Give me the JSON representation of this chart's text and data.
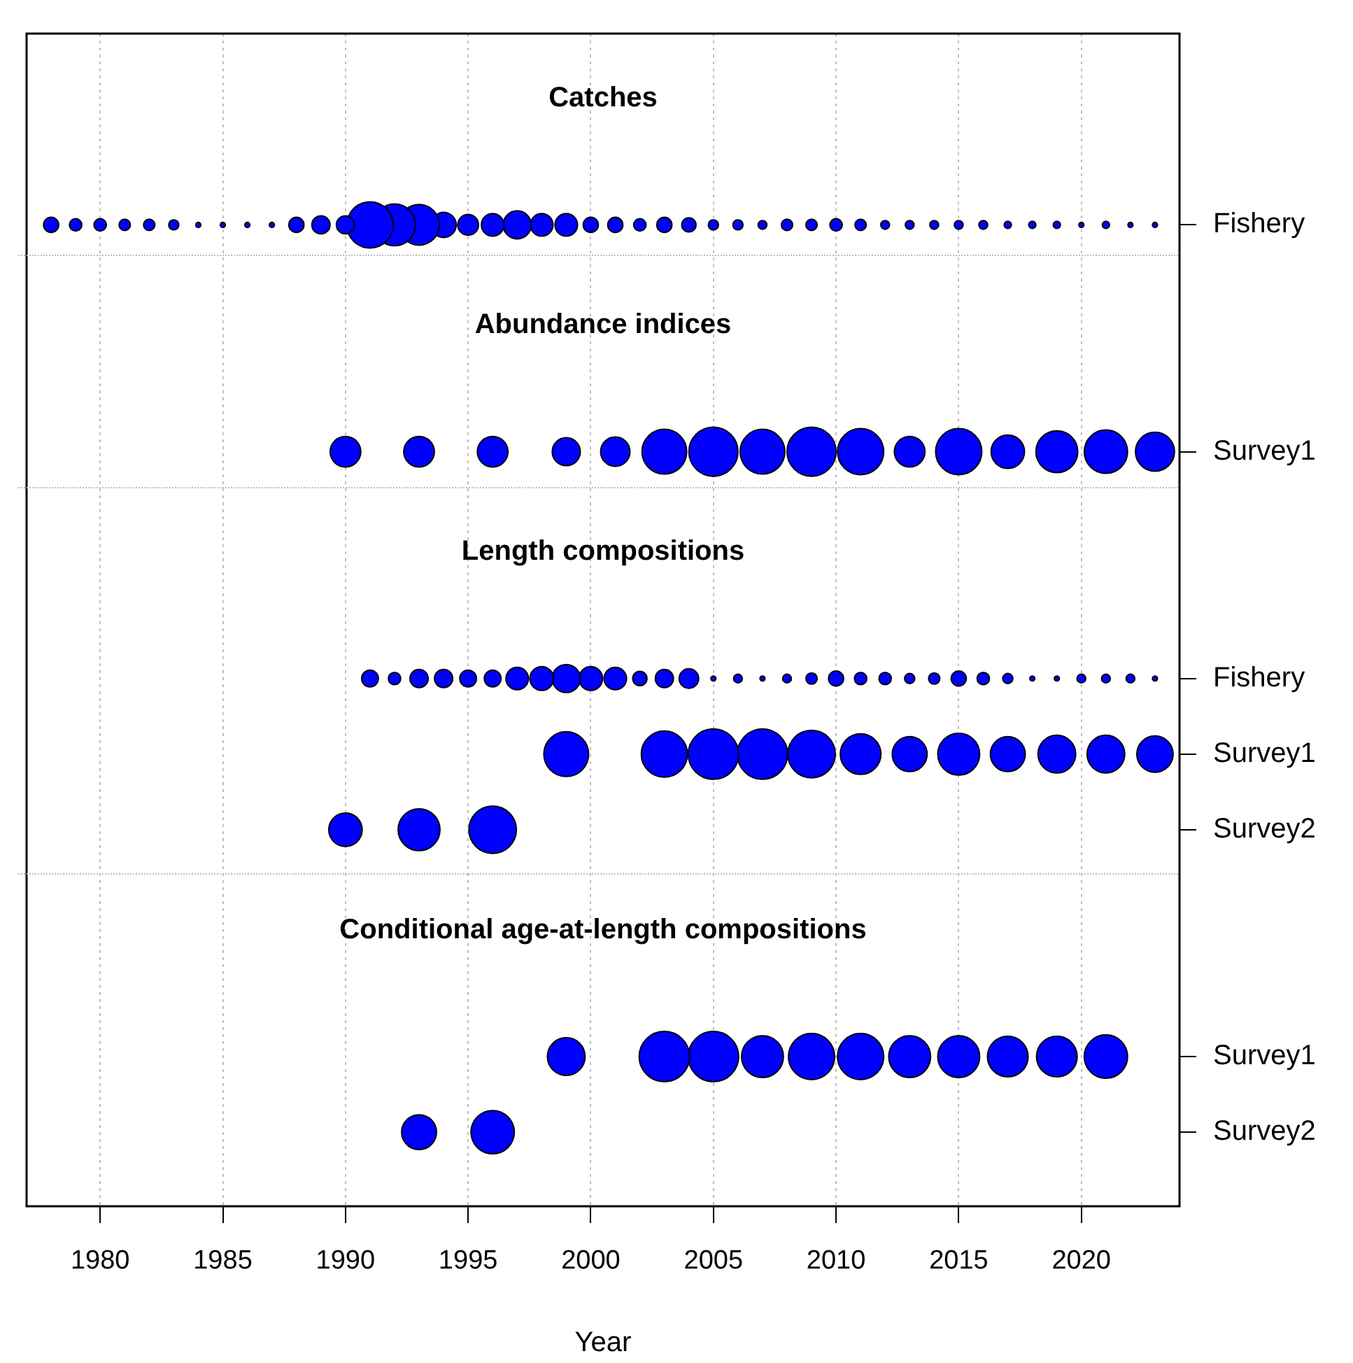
{
  "chart_data": {
    "type": "bubble",
    "orientation": "horizontal",
    "xlabel": "Year",
    "xlim": [
      1977,
      2024
    ],
    "xticks": [
      1980,
      1985,
      1990,
      1995,
      2000,
      2005,
      2010,
      2015,
      2020
    ],
    "grid": "x",
    "legend": false,
    "categories": [
      "Fishery",
      null,
      null,
      "Survey1",
      null,
      null,
      "Fishery",
      "Survey1",
      "Survey2",
      null,
      null,
      "Survey1",
      "Survey2"
    ],
    "annotations": [
      "Catches",
      "Abundance indices",
      "Length compositions",
      "Conditional age-at-length compositions"
    ],
    "series": [
      {
        "color": "#0000ff",
        "values": [
          1978,
          null,
          null,
          null,
          null,
          null,
          null,
          null,
          null,
          null,
          null,
          null,
          null
        ],
        "sizes": [
          0.09,
          null,
          null,
          null,
          null,
          null,
          null,
          null,
          null,
          null,
          null,
          null,
          null
        ]
      },
      {
        "color": "#0000ff",
        "values": [
          1979,
          null,
          null,
          null,
          null,
          null,
          null,
          null,
          null,
          null,
          null,
          null,
          null
        ],
        "sizes": [
          0.06,
          null,
          null,
          null,
          null,
          null,
          null,
          null,
          null,
          null,
          null,
          null,
          null
        ]
      },
      {
        "color": "#0000ff",
        "values": [
          1980,
          null,
          null,
          null,
          null,
          null,
          null,
          null,
          null,
          null,
          null,
          null,
          null
        ],
        "sizes": [
          0.06,
          null,
          null,
          null,
          null,
          null,
          null,
          null,
          null,
          null,
          null,
          null,
          null
        ]
      },
      {
        "color": "#0000ff",
        "values": [
          1981,
          null,
          null,
          null,
          null,
          null,
          null,
          null,
          null,
          null,
          null,
          null,
          null
        ],
        "sizes": [
          0.05,
          null,
          null,
          null,
          null,
          null,
          null,
          null,
          null,
          null,
          null,
          null,
          null
        ]
      },
      {
        "color": "#0000ff",
        "values": [
          1982,
          null,
          null,
          null,
          null,
          null,
          null,
          null,
          null,
          null,
          null,
          null,
          null
        ],
        "sizes": [
          0.05,
          null,
          null,
          null,
          null,
          null,
          null,
          null,
          null,
          null,
          null,
          null,
          null
        ]
      },
      {
        "color": "#0000ff",
        "values": [
          1983,
          null,
          null,
          null,
          null,
          null,
          null,
          null,
          null,
          null,
          null,
          null,
          null
        ],
        "sizes": [
          0.04,
          null,
          null,
          null,
          null,
          null,
          null,
          null,
          null,
          null,
          null,
          null,
          null
        ]
      },
      {
        "color": "#0000ff",
        "values": [
          1984,
          null,
          null,
          null,
          null,
          null,
          null,
          null,
          null,
          null,
          null,
          null,
          null
        ],
        "sizes": [
          0.01,
          null,
          null,
          null,
          null,
          null,
          null,
          null,
          null,
          null,
          null,
          null,
          null
        ]
      },
      {
        "color": "#0000ff",
        "values": [
          1985,
          null,
          null,
          null,
          null,
          null,
          null,
          null,
          null,
          null,
          null,
          null,
          null
        ],
        "sizes": [
          0.01,
          null,
          null,
          null,
          null,
          null,
          null,
          null,
          null,
          null,
          null,
          null,
          null
        ]
      },
      {
        "color": "#0000ff",
        "values": [
          1986,
          null,
          null,
          null,
          null,
          null,
          null,
          null,
          null,
          null,
          null,
          null,
          null
        ],
        "sizes": [
          0.01,
          null,
          null,
          null,
          null,
          null,
          null,
          null,
          null,
          null,
          null,
          null,
          null
        ]
      },
      {
        "color": "#0000ff",
        "values": [
          1987,
          null,
          null,
          null,
          null,
          null,
          null,
          null,
          null,
          null,
          null,
          null,
          null
        ],
        "sizes": [
          0.01,
          null,
          null,
          null,
          null,
          null,
          null,
          null,
          null,
          null,
          null,
          null,
          null
        ]
      },
      {
        "color": "#0000ff",
        "values": [
          1988,
          null,
          null,
          null,
          null,
          null,
          null,
          null,
          null,
          null,
          null,
          null,
          null
        ],
        "sizes": [
          0.09,
          null,
          null,
          null,
          null,
          null,
          null,
          null,
          null,
          null,
          null,
          null,
          null
        ]
      },
      {
        "color": "#0000ff",
        "values": [
          1989,
          null,
          null,
          null,
          null,
          null,
          null,
          null,
          null,
          null,
          null,
          null,
          null
        ],
        "sizes": [
          0.13,
          null,
          null,
          null,
          null,
          null,
          null,
          null,
          null,
          null,
          null,
          null,
          null
        ]
      },
      {
        "color": "#0000ff",
        "values": [
          1990,
          null,
          null,
          1990,
          null,
          null,
          null,
          null,
          1990,
          null,
          null,
          null,
          null
        ],
        "sizes": [
          0.13,
          null,
          null,
          0.37,
          null,
          null,
          null,
          null,
          0.44,
          null,
          null,
          null,
          null
        ]
      },
      {
        "color": "#0000ff",
        "values": [
          1991,
          null,
          null,
          null,
          null,
          null,
          1991,
          null,
          null,
          null,
          null,
          null,
          null
        ],
        "sizes": [
          0.84,
          null,
          null,
          null,
          null,
          null,
          0.11,
          null,
          null,
          null,
          null,
          null,
          null
        ]
      },
      {
        "color": "#0000ff",
        "values": [
          1992,
          null,
          null,
          null,
          null,
          null,
          1992,
          null,
          null,
          null,
          null,
          null,
          null
        ],
        "sizes": [
          0.69,
          null,
          null,
          null,
          null,
          null,
          0.06,
          null,
          null,
          null,
          null,
          null,
          null
        ]
      },
      {
        "color": "#0000ff",
        "values": [
          1993,
          null,
          null,
          1993,
          null,
          null,
          1993,
          null,
          1993,
          null,
          null,
          null,
          1993
        ],
        "sizes": [
          0.65,
          null,
          null,
          0.37,
          null,
          null,
          0.13,
          null,
          0.69,
          null,
          null,
          null,
          0.48
        ]
      },
      {
        "color": "#0000ff",
        "values": [
          1994,
          null,
          null,
          null,
          null,
          null,
          1994,
          null,
          null,
          null,
          null,
          null,
          null
        ],
        "sizes": [
          0.25,
          null,
          null,
          null,
          null,
          null,
          0.13,
          null,
          null,
          null,
          null,
          null,
          null
        ]
      },
      {
        "color": "#0000ff",
        "values": [
          1995,
          null,
          null,
          null,
          null,
          null,
          1995,
          null,
          null,
          null,
          null,
          null,
          null
        ],
        "sizes": [
          0.17,
          null,
          null,
          null,
          null,
          null,
          0.11,
          null,
          null,
          null,
          null,
          null,
          null
        ]
      },
      {
        "color": "#0000ff",
        "values": [
          1996,
          null,
          null,
          1996,
          null,
          null,
          1996,
          null,
          1996,
          null,
          null,
          null,
          1996
        ],
        "sizes": [
          0.2,
          null,
          null,
          0.37,
          null,
          null,
          0.11,
          null,
          0.89,
          null,
          null,
          null,
          0.74
        ]
      },
      {
        "color": "#0000ff",
        "values": [
          1997,
          null,
          null,
          null,
          null,
          null,
          1997,
          null,
          null,
          null,
          null,
          null,
          null
        ],
        "sizes": [
          0.31,
          null,
          null,
          null,
          null,
          null,
          0.2,
          null,
          null,
          null,
          null,
          null,
          null
        ]
      },
      {
        "color": "#0000ff",
        "values": [
          1998,
          null,
          null,
          null,
          null,
          null,
          1998,
          null,
          null,
          null,
          null,
          null,
          null
        ],
        "sizes": [
          0.2,
          null,
          null,
          null,
          null,
          null,
          0.22,
          null,
          null,
          null,
          null,
          null,
          null
        ]
      },
      {
        "color": "#0000ff",
        "values": [
          1999,
          null,
          null,
          1999,
          null,
          null,
          1999,
          1999,
          null,
          null,
          null,
          1999,
          null
        ],
        "sizes": [
          0.2,
          null,
          null,
          0.31,
          null,
          null,
          0.31,
          0.79,
          null,
          null,
          null,
          0.56,
          null
        ]
      },
      {
        "color": "#0000ff",
        "values": [
          2000,
          null,
          null,
          null,
          null,
          null,
          2000,
          null,
          null,
          null,
          null,
          null,
          null
        ],
        "sizes": [
          0.09,
          null,
          null,
          null,
          null,
          null,
          0.22,
          null,
          null,
          null,
          null,
          null,
          null
        ]
      },
      {
        "color": "#0000ff",
        "values": [
          2001,
          null,
          null,
          2001,
          null,
          null,
          2001,
          null,
          null,
          null,
          null,
          null,
          null
        ],
        "sizes": [
          0.09,
          null,
          null,
          0.34,
          null,
          null,
          0.2,
          null,
          null,
          null,
          null,
          null,
          null
        ]
      },
      {
        "color": "#0000ff",
        "values": [
          2002,
          null,
          null,
          null,
          null,
          null,
          2002,
          null,
          null,
          null,
          null,
          null,
          null
        ],
        "sizes": [
          0.06,
          null,
          null,
          null,
          null,
          null,
          0.08,
          null,
          null,
          null,
          null,
          null,
          null
        ]
      },
      {
        "color": "#0000ff",
        "values": [
          2003,
          null,
          null,
          2003,
          null,
          null,
          2003,
          2003,
          null,
          null,
          null,
          2003,
          null
        ],
        "sizes": [
          0.09,
          null,
          null,
          0.79,
          null,
          null,
          0.13,
          0.84,
          null,
          null,
          null,
          1,
          null
        ]
      },
      {
        "color": "#0000ff",
        "values": [
          2004,
          null,
          null,
          null,
          null,
          null,
          2004,
          null,
          null,
          null,
          null,
          null,
          null
        ],
        "sizes": [
          0.08,
          null,
          null,
          null,
          null,
          null,
          0.15,
          null,
          null,
          null,
          null,
          null,
          null
        ]
      },
      {
        "color": "#0000ff",
        "values": [
          2005,
          null,
          null,
          2005,
          null,
          null,
          2005,
          2005,
          null,
          null,
          null,
          2005,
          null
        ],
        "sizes": [
          0.04,
          null,
          null,
          0.95,
          null,
          null,
          0.01,
          1,
          null,
          null,
          null,
          1,
          null
        ]
      },
      {
        "color": "#0000ff",
        "values": [
          2006,
          null,
          null,
          null,
          null,
          null,
          2006,
          null,
          null,
          null,
          null,
          null,
          null
        ],
        "sizes": [
          0.04,
          null,
          null,
          null,
          null,
          null,
          0.03,
          null,
          null,
          null,
          null,
          null,
          null
        ]
      },
      {
        "color": "#0000ff",
        "values": [
          2007,
          null,
          null,
          2007,
          null,
          null,
          2007,
          2007,
          null,
          null,
          null,
          2007,
          null
        ],
        "sizes": [
          0.03,
          null,
          null,
          0.79,
          null,
          null,
          0.01,
          1,
          null,
          null,
          null,
          0.69,
          null
        ]
      },
      {
        "color": "#0000ff",
        "values": [
          2008,
          null,
          null,
          null,
          null,
          null,
          2008,
          null,
          null,
          null,
          null,
          null,
          null
        ],
        "sizes": [
          0.05,
          null,
          null,
          null,
          null,
          null,
          0.03,
          null,
          null,
          null,
          null,
          null,
          null
        ]
      },
      {
        "color": "#0000ff",
        "values": [
          2009,
          null,
          null,
          2009,
          null,
          null,
          2009,
          2009,
          null,
          null,
          null,
          2009,
          null
        ],
        "sizes": [
          0.05,
          null,
          null,
          0.95,
          null,
          null,
          0.05,
          0.89,
          null,
          null,
          null,
          0.84,
          null
        ]
      },
      {
        "color": "#0000ff",
        "values": [
          2010,
          null,
          null,
          null,
          null,
          null,
          2010,
          null,
          null,
          null,
          null,
          null,
          null
        ],
        "sizes": [
          0.06,
          null,
          null,
          null,
          null,
          null,
          0.09,
          null,
          null,
          null,
          null,
          null,
          null
        ]
      },
      {
        "color": "#0000ff",
        "values": [
          2011,
          null,
          null,
          2011,
          null,
          null,
          2011,
          2011,
          null,
          null,
          null,
          2011,
          null
        ],
        "sizes": [
          0.05,
          null,
          null,
          0.84,
          null,
          null,
          0.06,
          0.65,
          null,
          null,
          null,
          0.84,
          null
        ]
      },
      {
        "color": "#0000ff",
        "values": [
          2012,
          null,
          null,
          null,
          null,
          null,
          2012,
          null,
          null,
          null,
          null,
          null,
          null
        ],
        "sizes": [
          0.03,
          null,
          null,
          null,
          null,
          null,
          0.06,
          null,
          null,
          null,
          null,
          null,
          null
        ]
      },
      {
        "color": "#0000ff",
        "values": [
          2013,
          null,
          null,
          2013,
          null,
          null,
          2013,
          2013,
          null,
          null,
          null,
          2013,
          null
        ],
        "sizes": [
          0.03,
          null,
          null,
          0.37,
          null,
          null,
          0.04,
          0.48,
          null,
          null,
          null,
          0.69,
          null
        ]
      },
      {
        "color": "#0000ff",
        "values": [
          2014,
          null,
          null,
          null,
          null,
          null,
          2014,
          null,
          null,
          null,
          null,
          null,
          null
        ],
        "sizes": [
          0.03,
          null,
          null,
          null,
          null,
          null,
          0.05,
          null,
          null,
          null,
          null,
          null,
          null
        ]
      },
      {
        "color": "#0000ff",
        "values": [
          2015,
          null,
          null,
          2015,
          null,
          null,
          2015,
          2015,
          null,
          null,
          null,
          2015,
          null
        ],
        "sizes": [
          0.03,
          null,
          null,
          0.84,
          null,
          null,
          0.09,
          0.69,
          null,
          null,
          null,
          0.69,
          null
        ]
      },
      {
        "color": "#0000ff",
        "values": [
          2016,
          null,
          null,
          null,
          null,
          null,
          2016,
          null,
          null,
          null,
          null,
          null,
          null
        ],
        "sizes": [
          0.03,
          null,
          null,
          null,
          null,
          null,
          0.06,
          null,
          null,
          null,
          null,
          null,
          null
        ]
      },
      {
        "color": "#0000ff",
        "values": [
          2017,
          null,
          null,
          2017,
          null,
          null,
          2017,
          2017,
          null,
          null,
          null,
          2017,
          null
        ],
        "sizes": [
          0.02,
          null,
          null,
          0.44,
          null,
          null,
          0.04,
          0.48,
          null,
          null,
          null,
          0.65,
          null
        ]
      },
      {
        "color": "#0000ff",
        "values": [
          2018,
          null,
          null,
          null,
          null,
          null,
          2018,
          null,
          null,
          null,
          null,
          null,
          null
        ],
        "sizes": [
          0.02,
          null,
          null,
          null,
          null,
          null,
          0.01,
          null,
          null,
          null,
          null,
          null,
          null
        ]
      },
      {
        "color": "#0000ff",
        "values": [
          2019,
          null,
          null,
          2019,
          null,
          null,
          2019,
          2019,
          null,
          null,
          null,
          2019,
          null
        ],
        "sizes": [
          0.02,
          null,
          null,
          0.69,
          null,
          null,
          0.01,
          0.56,
          null,
          null,
          null,
          0.65,
          null
        ]
      },
      {
        "color": "#0000ff",
        "values": [
          2020,
          null,
          null,
          null,
          null,
          null,
          2020,
          null,
          null,
          null,
          null,
          null,
          null
        ],
        "sizes": [
          0.01,
          null,
          null,
          null,
          null,
          null,
          0.03,
          null,
          null,
          null,
          null,
          null,
          null
        ]
      },
      {
        "color": "#0000ff",
        "values": [
          2021,
          null,
          null,
          2021,
          null,
          null,
          2021,
          2021,
          null,
          null,
          null,
          2021,
          null
        ],
        "sizes": [
          0.02,
          null,
          null,
          0.74,
          null,
          null,
          0.03,
          0.56,
          null,
          null,
          null,
          0.74,
          null
        ]
      },
      {
        "color": "#0000ff",
        "values": [
          2022,
          null,
          null,
          null,
          null,
          null,
          2022,
          null,
          null,
          null,
          null,
          null,
          null
        ],
        "sizes": [
          0.01,
          null,
          null,
          null,
          null,
          null,
          0.03,
          null,
          null,
          null,
          null,
          null,
          null
        ]
      },
      {
        "color": "#0000ff",
        "values": [
          2023,
          null,
          null,
          2023,
          null,
          null,
          2023,
          2023,
          null,
          null,
          null,
          null,
          null
        ],
        "sizes": [
          0.01,
          null,
          null,
          0.6,
          null,
          null,
          0.01,
          0.52,
          null,
          null,
          null,
          null,
          null
        ]
      }
    ]
  }
}
